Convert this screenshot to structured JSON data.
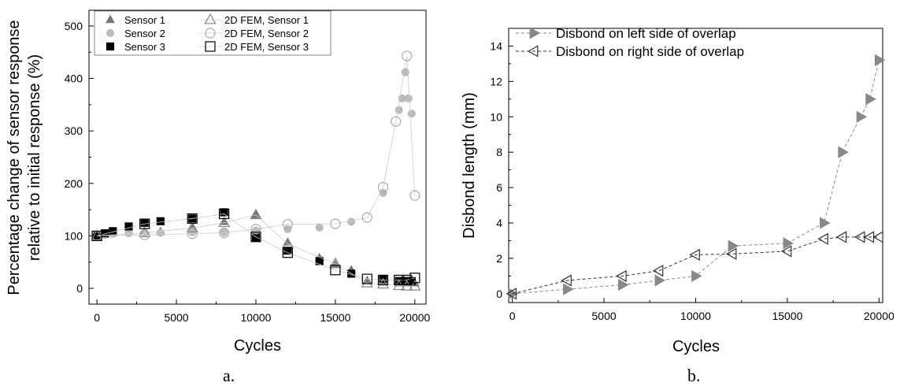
{
  "chart_data": [
    {
      "type": "scatter",
      "panel_label": "a.",
      "xlabel": "Cycles",
      "ylabel_lines": [
        "Percentage change of sensor response",
        "relative to initial response (%)"
      ],
      "xlim": [
        -500,
        20700
      ],
      "ylim": [
        -30,
        530
      ],
      "xticks": [
        0,
        5000,
        10000,
        15000,
        20000
      ],
      "yticks": [
        0,
        100,
        200,
        300,
        400,
        500
      ],
      "legend_position": "top-left",
      "series": [
        {
          "name": "Sensor 1",
          "marker": "triangle",
          "filled": true,
          "color": "#777777",
          "x": [
            0,
            500,
            1000,
            2000,
            3000,
            4000,
            6000,
            8000,
            10000,
            12000,
            14000,
            15000,
            16000,
            17000,
            18000,
            19000,
            19200,
            19400,
            19600,
            19800,
            20000
          ],
          "y": [
            100,
            103,
            106,
            107,
            108,
            108,
            115,
            127,
            140,
            88,
            58,
            45,
            35,
            15,
            12,
            10,
            10,
            10,
            10,
            10,
            10
          ]
        },
        {
          "name": "Sensor 2",
          "marker": "circle",
          "filled": true,
          "color": "#bbbbbb",
          "x": [
            0,
            500,
            1000,
            2000,
            3000,
            4000,
            6000,
            8000,
            10000,
            12000,
            14000,
            16000,
            18000,
            19000,
            19200,
            19400,
            19600,
            19800
          ],
          "y": [
            100,
            102,
            104,
            105,
            106,
            106,
            107,
            107,
            110,
            113,
            116,
            127,
            182,
            340,
            362,
            412,
            362,
            333
          ]
        },
        {
          "name": "Sensor 3",
          "marker": "square",
          "filled": true,
          "color": "#000000",
          "x": [
            0,
            500,
            1000,
            2000,
            3000,
            4000,
            6000,
            8000,
            10000,
            12000,
            14000,
            16000,
            18000,
            19000,
            19200,
            19400,
            19600,
            19800
          ],
          "y": [
            100,
            105,
            109,
            118,
            125,
            128,
            133,
            145,
            97,
            72,
            52,
            28,
            18,
            14,
            14,
            14,
            14,
            14
          ]
        },
        {
          "name": "2D FEM, Sensor 1",
          "marker": "triangle",
          "filled": false,
          "color": "#888888",
          "x": [
            0,
            3000,
            6000,
            8000,
            10000,
            12000,
            15000,
            17000,
            18000,
            19000,
            19500,
            20000
          ],
          "y": [
            100,
            106,
            115,
            125,
            140,
            85,
            47,
            10,
            8,
            5,
            4,
            4
          ]
        },
        {
          "name": "2D FEM, Sensor 2",
          "marker": "circle",
          "filled": false,
          "color": "#aaaaaa",
          "x": [
            0,
            3000,
            6000,
            8000,
            10000,
            12000,
            15000,
            17000,
            18000,
            18800,
            19500,
            20000
          ],
          "y": [
            100,
            102,
            104,
            106,
            113,
            122,
            123,
            135,
            193,
            318,
            443,
            177
          ]
        },
        {
          "name": "2D FEM, Sensor 3",
          "marker": "square",
          "filled": false,
          "color": "#000000",
          "x": [
            0,
            3000,
            6000,
            8000,
            10000,
            12000,
            15000,
            17000,
            18000,
            19000,
            19500,
            20000
          ],
          "y": [
            100,
            123,
            133,
            142,
            98,
            68,
            35,
            18,
            16,
            16,
            16,
            20
          ]
        }
      ]
    },
    {
      "type": "line",
      "panel_label": "b.",
      "xlabel": "Cycles",
      "ylabel": "Disbond length (mm)",
      "xlim": [
        -200,
        20200
      ],
      "ylim": [
        -0.5,
        15
      ],
      "xticks": [
        0,
        5000,
        10000,
        15000,
        20000
      ],
      "yticks": [
        0,
        2,
        4,
        6,
        8,
        10,
        12,
        14
      ],
      "legend_position": "top-left",
      "series": [
        {
          "name": "Disbond on left side of overlap",
          "marker": "triangle-right",
          "filled": true,
          "color": "#888888",
          "x": [
            0,
            3000,
            6000,
            8000,
            10000,
            12000,
            15000,
            17000,
            18000,
            19000,
            19500,
            20000
          ],
          "y": [
            0,
            0.25,
            0.5,
            0.75,
            1.0,
            2.7,
            2.85,
            4.0,
            8.0,
            10.0,
            11.0,
            13.2
          ]
        },
        {
          "name": "Disbond on right side of overlap",
          "marker": "triangle-left",
          "filled": false,
          "color": "#333333",
          "x": [
            0,
            3000,
            6000,
            8000,
            10000,
            12000,
            15000,
            17000,
            18000,
            19000,
            19500,
            20000
          ],
          "y": [
            0,
            0.75,
            1.0,
            1.3,
            2.2,
            2.25,
            2.4,
            3.1,
            3.2,
            3.2,
            3.2,
            3.2
          ]
        }
      ]
    }
  ]
}
